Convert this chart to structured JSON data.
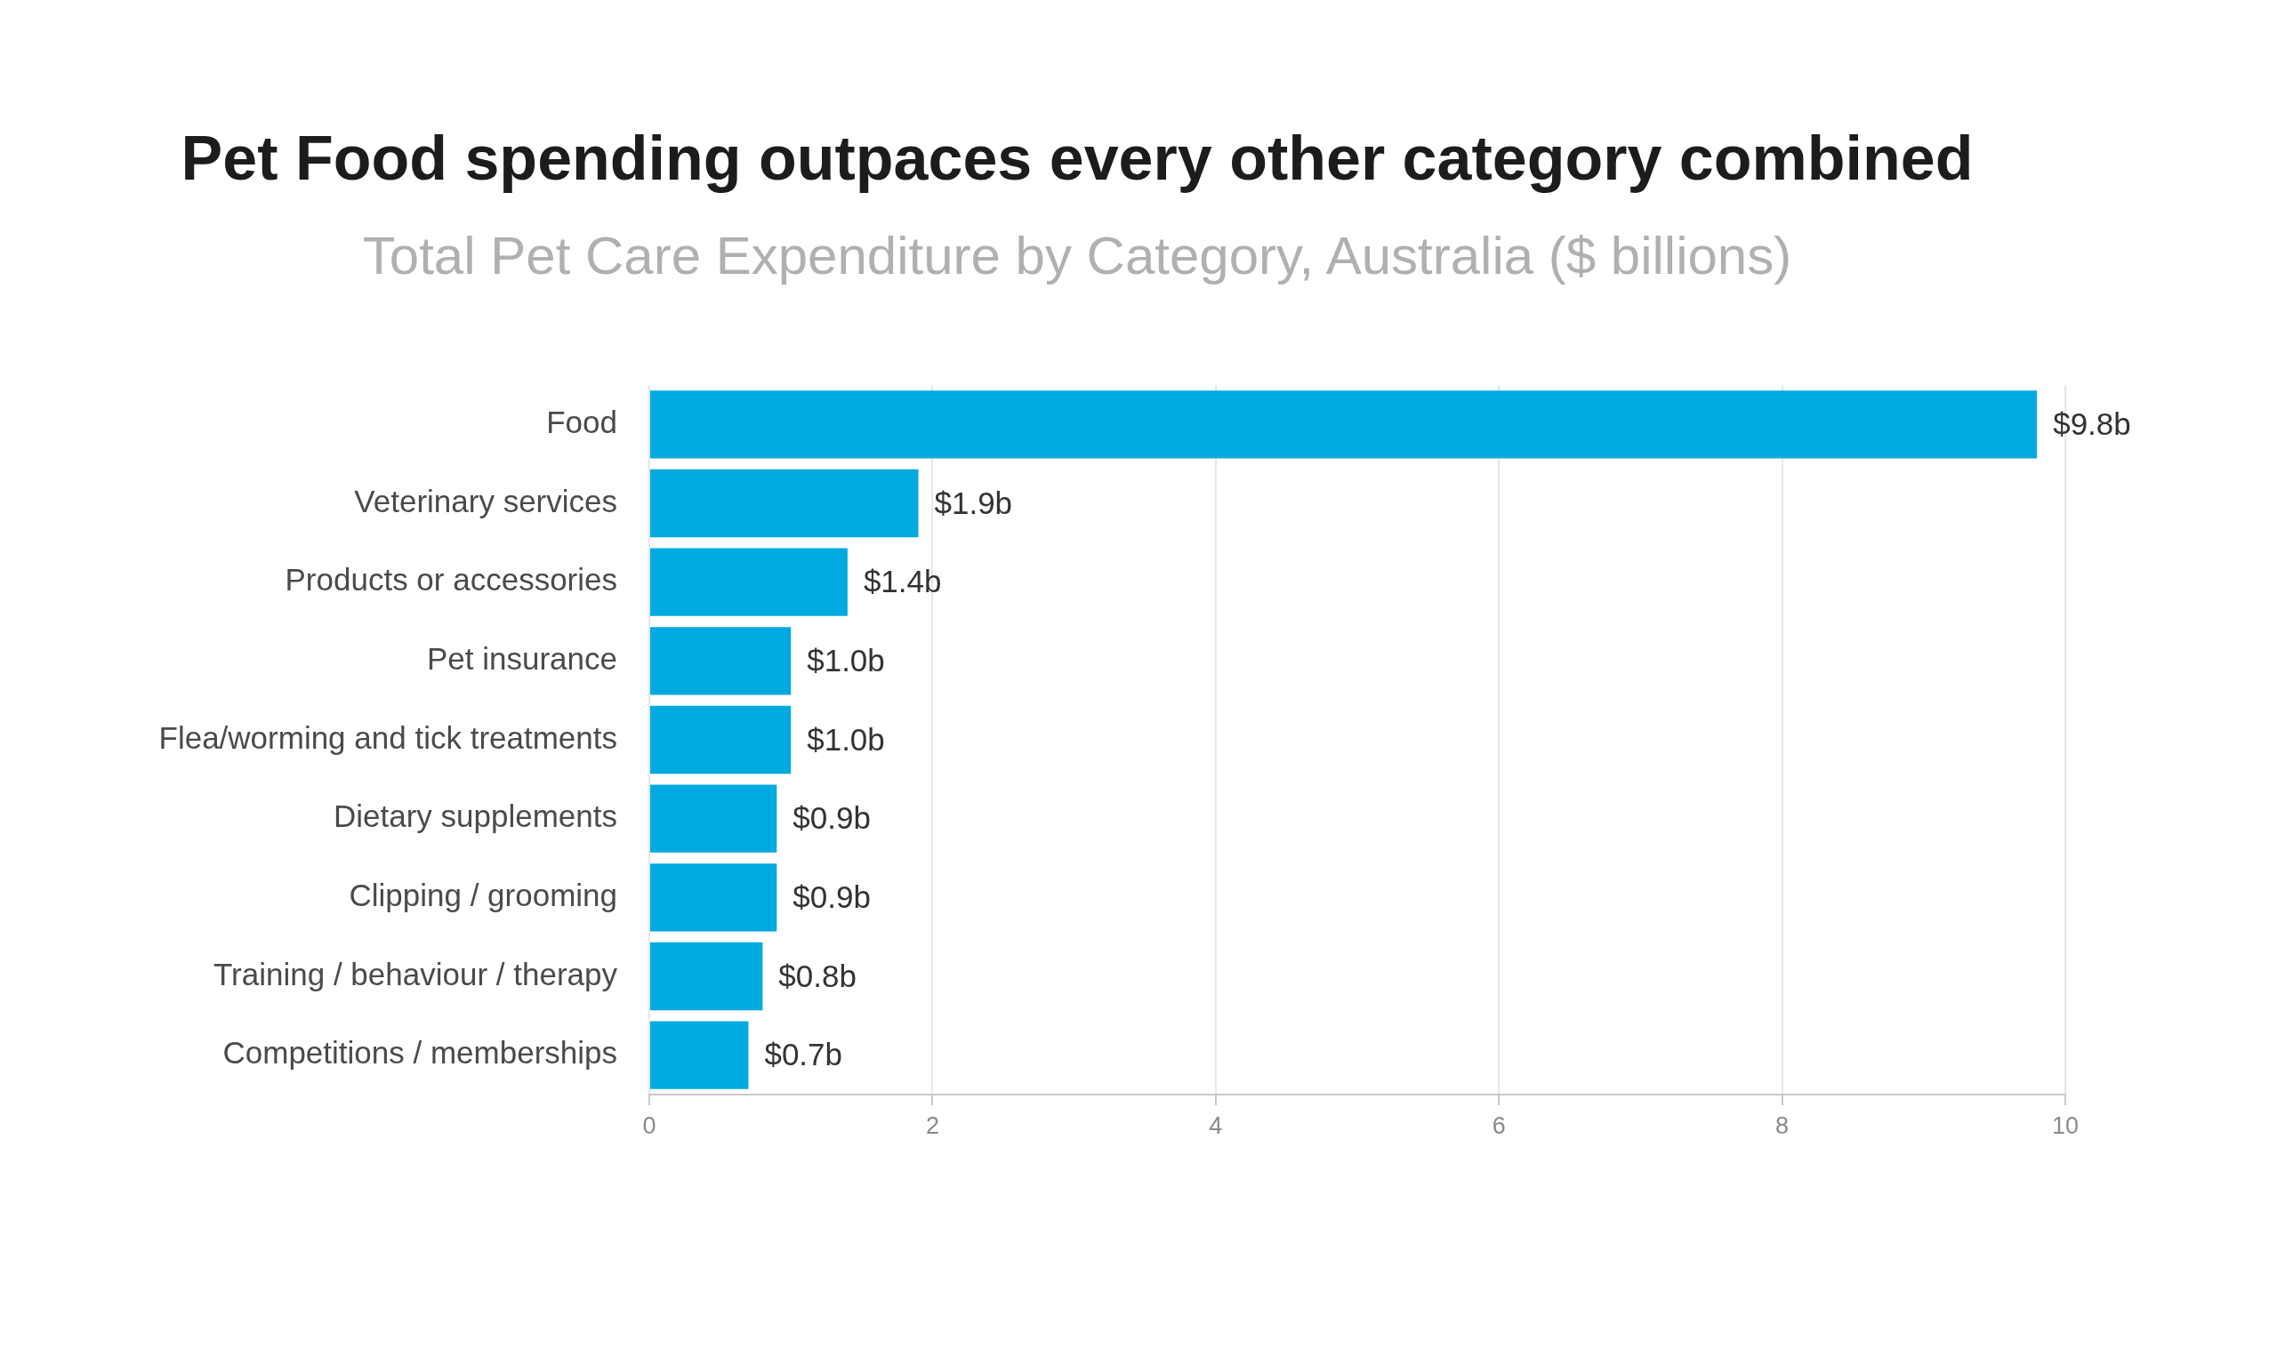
{
  "chart_data": {
    "type": "bar",
    "orientation": "horizontal",
    "title": "Pet Food spending outpaces every other category combined",
    "subtitle": "Total Pet Care Expenditure by Category, Australia ($ billions)",
    "categories": [
      "Food",
      "Veterinary services",
      "Products or accessories",
      "Pet insurance",
      "Flea/worming and tick treatments",
      "Dietary supplements",
      "Clipping / grooming",
      "Training / behaviour / therapy",
      "Competitions / memberships"
    ],
    "values": [
      9.8,
      1.9,
      1.4,
      1.0,
      1.0,
      0.9,
      0.9,
      0.8,
      0.7
    ],
    "value_labels": [
      "$9.8b",
      "$1.9b",
      "$1.4b",
      "$1.0b",
      "$1.0b",
      "$0.9b",
      "$0.9b",
      "$0.8b",
      "$0.7b"
    ],
    "color": "#00aae0",
    "xlim": [
      0,
      10
    ],
    "xticks": [
      0,
      2,
      4,
      6,
      8,
      10
    ],
    "grid": "x",
    "legend": false
  }
}
